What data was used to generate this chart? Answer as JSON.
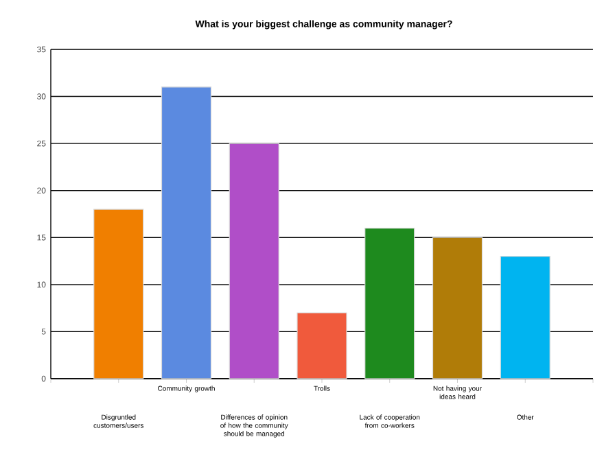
{
  "chart_data": {
    "type": "bar",
    "title": "What is your biggest challenge as community manager?",
    "categories": [
      "Disgruntled customers/users",
      "Community growth",
      "Differences of opinion of how the community should be managed",
      "Trolls",
      "Lack of cooperation from co-workers",
      "Not having your ideas heard",
      "Other"
    ],
    "values": [
      18,
      31,
      25,
      7,
      16,
      15,
      13
    ],
    "colors": [
      "#f07f00",
      "#5b8ae0",
      "#b04ec8",
      "#f05a3c",
      "#1e8a1e",
      "#b07c08",
      "#00b4f0"
    ],
    "ylim": [
      0,
      35
    ],
    "yticks": [
      0,
      5,
      10,
      15,
      20,
      25,
      30,
      35
    ],
    "grid": "y"
  }
}
